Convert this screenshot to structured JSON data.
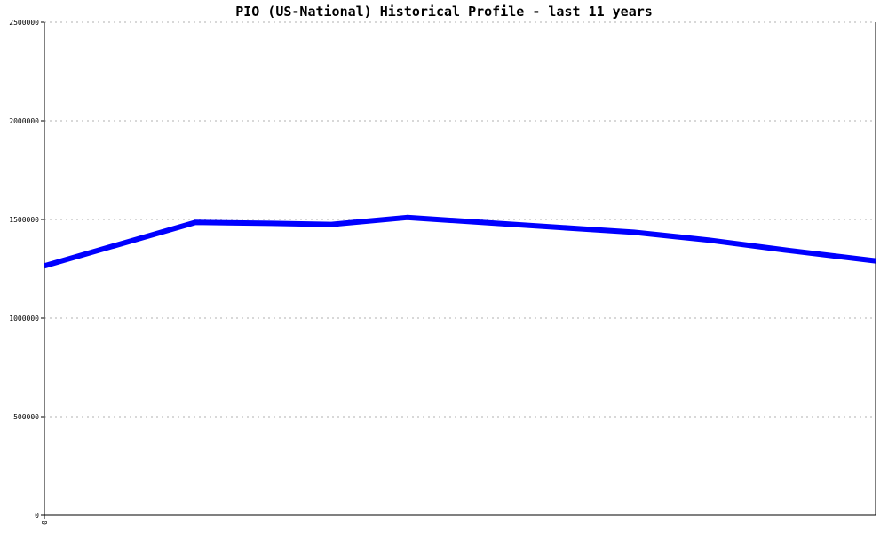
{
  "chart_data": {
    "type": "line",
    "title": "PIO (US-National) Historical Profile - last 11 years",
    "xlabel": "",
    "ylabel": "",
    "x_tick_labels": [
      "0"
    ],
    "y_ticks": [
      0,
      500000,
      1000000,
      1500000,
      2000000,
      2500000
    ],
    "y_tick_labels": [
      "0",
      "500000",
      "1000000",
      "1500000",
      "2000000",
      "2500000"
    ],
    "ylim": [
      0,
      2500000
    ],
    "xlim": [
      0,
      11
    ],
    "grid": true,
    "legend": "none",
    "series": [
      {
        "color": "#0000ff",
        "points": [
          {
            "x": 0,
            "y": 1265000
          },
          {
            "x": 2,
            "y": 1485000
          },
          {
            "x": 3,
            "y": 1480000
          },
          {
            "x": 3.8,
            "y": 1475000
          },
          {
            "x": 4.8,
            "y": 1510000
          },
          {
            "x": 6.8,
            "y": 1460000
          },
          {
            "x": 7.8,
            "y": 1435000
          },
          {
            "x": 8.8,
            "y": 1395000
          },
          {
            "x": 9.8,
            "y": 1345000
          },
          {
            "x": 11,
            "y": 1290000
          }
        ]
      }
    ]
  }
}
